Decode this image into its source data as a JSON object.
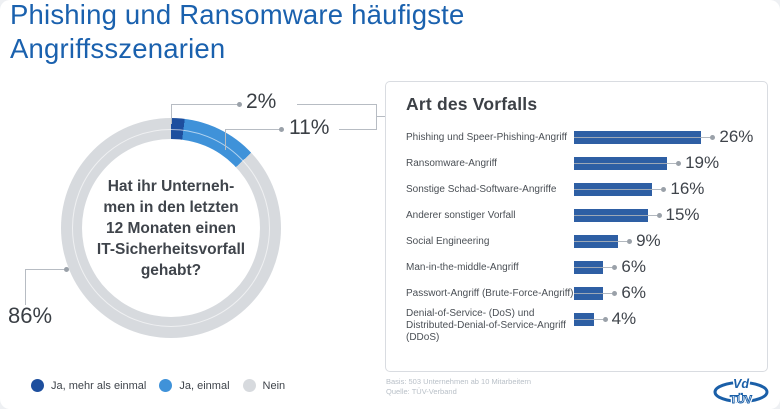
{
  "header": {
    "title": "Phishing und Ransomware häufigste Angriffsszenarien"
  },
  "chart_data": [
    {
      "type": "pie",
      "subtype": "donut",
      "question": "Hat ihr Unternehmen in den letzten 12 Monaten einen IT-Sicherheitsvorfall gehabt?",
      "question_lines": [
        "Hat ihr Unterneh-",
        "men in den letzten",
        "12 Monaten einen",
        "IT-Sicherheitsvorfall",
        "gehabt?"
      ],
      "slices": [
        {
          "label": "Ja, mehr als einmal",
          "value": 2,
          "color": "#1e4f9e"
        },
        {
          "label": "Ja, einmal",
          "value": 11,
          "color": "#3f92d9"
        },
        {
          "label": "Nein",
          "value": 86,
          "color": "#d7dade"
        }
      ],
      "unit": "%",
      "start_angle": "top",
      "direction": "clockwise",
      "legend_position": "bottom-left"
    },
    {
      "type": "bar",
      "orientation": "horizontal",
      "title": "Art des Vorfalls",
      "categories": [
        "Phishing und Speer-Phishing-Angriff",
        "Ransomware-Angriff",
        "Sonstige Schad-Software-Angriffe",
        "Anderer sonstiger Vorfall",
        "Social Engineering",
        "Man-in-the-middle-Angriff",
        "Passwort-Angriff (Brute-Force-Angriff)",
        "Denial-of-Service- (DoS) und Distributed-Denial-of-Service-Angriff (DDoS)"
      ],
      "values": [
        26,
        19,
        16,
        15,
        9,
        6,
        6,
        4
      ],
      "unit": "%",
      "xlim": [
        0,
        30
      ],
      "grid": false,
      "bar_color": "#2e5fa4"
    }
  ],
  "footer": {
    "basis": "Basis: 503 Unternehmen ab 10 Mitarbeitern",
    "quelle": "Quelle: TÜV-Verband"
  },
  "logo": {
    "top": "Vd",
    "bottom": "TÜV"
  },
  "colors": {
    "title_blue": "#1a61ae",
    "dark_blue": "#1e4f9e",
    "light_blue": "#3f92d9",
    "neutral_gray": "#d7dade",
    "leader_line": "#b7bcc3",
    "leader_dot": "#9aa1a9",
    "text_dark": "#3f444b"
  }
}
